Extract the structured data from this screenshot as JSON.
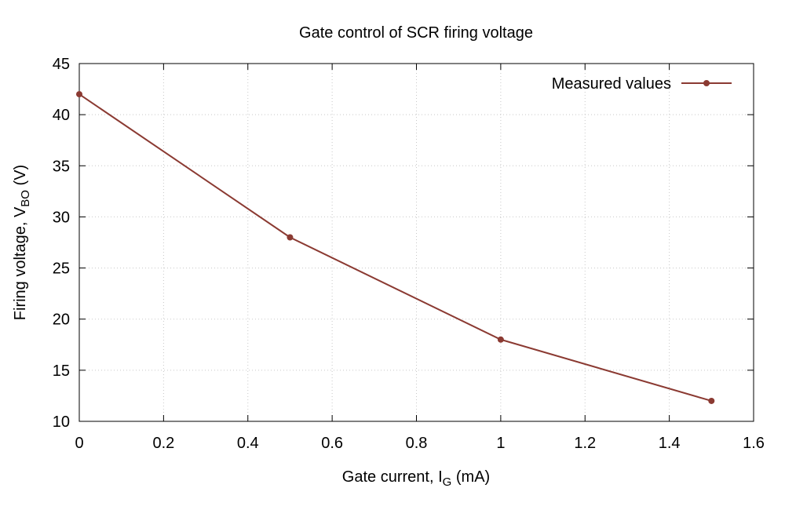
{
  "chart_data": {
    "type": "line",
    "title": "Gate control of SCR firing voltage",
    "xlabel_main": "Gate current, I",
    "xlabel_sub": "G",
    "xlabel_unit": " (mA)",
    "ylabel_main": "Firing voltage, V",
    "ylabel_sub": "BO",
    "ylabel_unit": " (V)",
    "xlim": [
      0,
      1.6
    ],
    "ylim": [
      10,
      45
    ],
    "xticks": [
      0,
      0.2,
      0.4,
      0.6,
      0.8,
      1,
      1.2,
      1.4,
      1.6
    ],
    "xtick_labels": [
      "0",
      "0.2",
      "0.4",
      "0.6",
      "0.8",
      "1",
      "1.2",
      "1.4",
      "1.6"
    ],
    "yticks": [
      10,
      15,
      20,
      25,
      30,
      35,
      40,
      45
    ],
    "ytick_labels": [
      "10",
      "15",
      "20",
      "25",
      "30",
      "35",
      "40",
      "45"
    ],
    "grid": true,
    "legend_position": "top-right",
    "series": [
      {
        "name": "Measured values",
        "color": "#8b3a32",
        "x": [
          0,
          0.5,
          1,
          1.5
        ],
        "y": [
          42,
          28,
          18,
          12
        ]
      }
    ]
  }
}
